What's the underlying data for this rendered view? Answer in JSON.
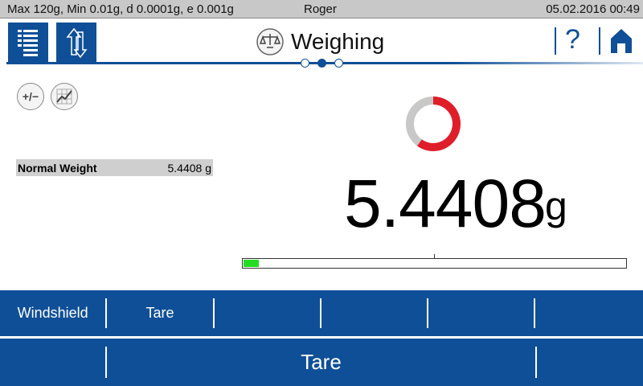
{
  "status": {
    "balance_info": "Max 120g, Min 0.01g, d 0.0001g, e 0.001g",
    "user": "Roger",
    "datetime": "05.02.2016 00:49"
  },
  "header": {
    "title": "Weighing",
    "icons": [
      "menu-list-icon",
      "transfer-arrows-icon",
      "scale-icon",
      "help-icon",
      "home-icon"
    ],
    "help_label": "?",
    "page_count": 3,
    "active_page": 2
  },
  "tools": {
    "plus_minus_label": "+/−",
    "icons": [
      "plus-minus-icon",
      "chart-icon"
    ]
  },
  "info_row": {
    "label": "Normal Weight",
    "value": "5.4408 g"
  },
  "display": {
    "value": "5.4408",
    "unit": "g",
    "ring_fraction": 0.6,
    "ring_colors": {
      "filled": "#e01e2a",
      "empty": "#c8c8c8"
    },
    "capacity_fraction": 0.04,
    "bar_color": "#22dd22"
  },
  "softkeys": [
    "Windshield",
    "Tare",
    "",
    "",
    "",
    ""
  ],
  "main_keys": [
    "",
    "Tare",
    ""
  ],
  "colors": {
    "brand": "#0f4f97"
  }
}
